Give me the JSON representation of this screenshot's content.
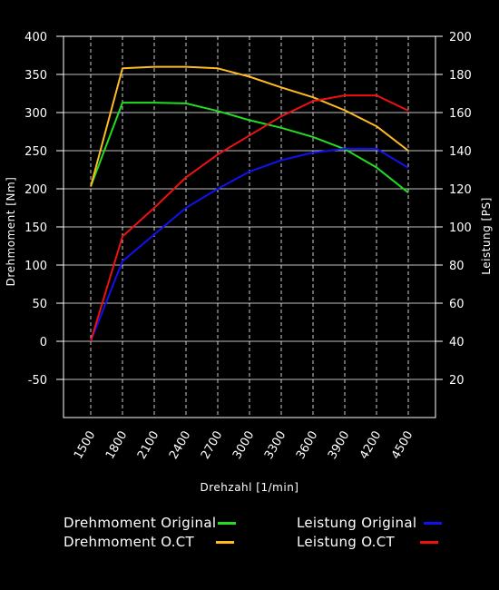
{
  "chart_data": {
    "type": "line",
    "xlabel": "Drehzahl [1/min]",
    "ylabel": "Drehmoment [Nm]",
    "y2label": "Leistung [PS]",
    "x": [
      1500,
      1800,
      2100,
      2400,
      2700,
      3000,
      3300,
      3600,
      3900,
      4200,
      4500
    ],
    "x_ticks": [
      "1500",
      "1800",
      "2100",
      "2400",
      "2700",
      "3000",
      "3300",
      "3600",
      "3900",
      "4200",
      "4500"
    ],
    "ylim": [
      -100,
      400
    ],
    "y_ticks": [
      -50,
      0,
      50,
      100,
      150,
      200,
      250,
      300,
      350,
      400
    ],
    "y2lim": [
      0,
      200
    ],
    "y2_ticks": [
      20,
      40,
      60,
      80,
      100,
      120,
      140,
      160,
      180,
      200
    ],
    "grid": true,
    "legend_position": "bottom",
    "series": [
      {
        "name": "Drehmoment Original",
        "axis": "left",
        "color": "#22dd22",
        "values": [
          203,
          313,
          313,
          312,
          302,
          290,
          280,
          268,
          252,
          228,
          195
        ]
      },
      {
        "name": "Drehmoment O.CT",
        "axis": "left",
        "color": "#ffbb22",
        "values": [
          203,
          358,
          360,
          360,
          358,
          347,
          333,
          320,
          303,
          282,
          250
        ]
      },
      {
        "name": "Leistung Original",
        "axis": "right",
        "color": "#1111ee",
        "values": [
          40,
          82,
          96,
          110,
          120,
          129,
          135,
          139,
          141,
          141,
          131
        ]
      },
      {
        "name": "Leistung O.CT",
        "axis": "right",
        "color": "#ee1111",
        "values": [
          40,
          95,
          110,
          126,
          138,
          148,
          158,
          166,
          169,
          169,
          161
        ]
      }
    ]
  }
}
